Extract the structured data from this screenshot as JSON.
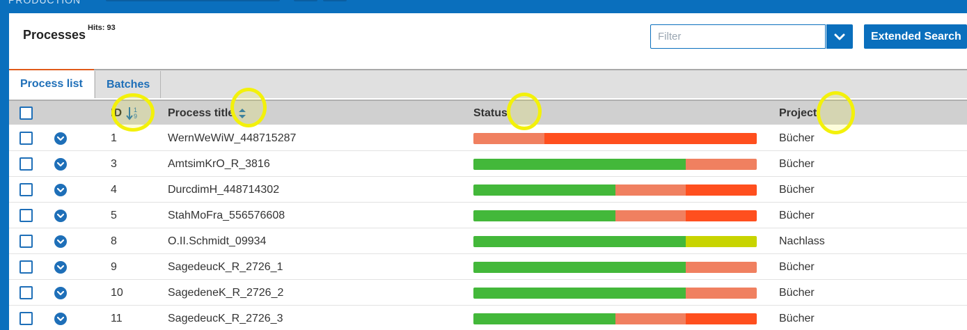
{
  "topbar": {
    "app_label": "PRODUCTION"
  },
  "header": {
    "title": "Processes",
    "hits": "Hits: 93",
    "filter_placeholder": "Filter",
    "extended_search_label": "Extended Search"
  },
  "tabs": [
    {
      "label": "Process list",
      "active": true
    },
    {
      "label": "Batches",
      "active": false
    }
  ],
  "table": {
    "columns": {
      "id": "ID",
      "title": "Process title",
      "status": "Status",
      "project": "Project"
    },
    "rows": [
      {
        "id": "1",
        "title": "WernWeWiW_448715287",
        "project": "Bücher",
        "status": [
          {
            "color": "#f08060",
            "fraction": 0.25
          },
          {
            "color": "#ff4f1e",
            "fraction": 0.75
          }
        ]
      },
      {
        "id": "3",
        "title": "AmtsimKrO_R_3816",
        "project": "Bücher",
        "status": [
          {
            "color": "#43b83a",
            "fraction": 0.75
          },
          {
            "color": "#f08060",
            "fraction": 0.25
          }
        ]
      },
      {
        "id": "4",
        "title": "DurcdimH_448714302",
        "project": "Bücher",
        "status": [
          {
            "color": "#43b83a",
            "fraction": 0.5
          },
          {
            "color": "#f08060",
            "fraction": 0.25
          },
          {
            "color": "#ff4f1e",
            "fraction": 0.25
          }
        ]
      },
      {
        "id": "5",
        "title": "StahMoFra_556576608",
        "project": "Bücher",
        "status": [
          {
            "color": "#43b83a",
            "fraction": 0.5
          },
          {
            "color": "#f08060",
            "fraction": 0.25
          },
          {
            "color": "#ff4f1e",
            "fraction": 0.25
          }
        ]
      },
      {
        "id": "8",
        "title": "O.II.Schmidt_09934",
        "project": "Nachlass",
        "status": [
          {
            "color": "#43b83a",
            "fraction": 0.75
          },
          {
            "color": "#c8d400",
            "fraction": 0.25
          }
        ]
      },
      {
        "id": "9",
        "title": "SagedeucK_R_2726_1",
        "project": "Bücher",
        "status": [
          {
            "color": "#43b83a",
            "fraction": 0.75
          },
          {
            "color": "#f08060",
            "fraction": 0.25
          }
        ]
      },
      {
        "id": "10",
        "title": "SagedeneK_R_2726_2",
        "project": "Bücher",
        "status": [
          {
            "color": "#43b83a",
            "fraction": 0.75
          },
          {
            "color": "#f08060",
            "fraction": 0.25
          }
        ]
      },
      {
        "id": "11",
        "title": "SagedeucK_R_2726_3",
        "project": "Bücher",
        "status": [
          {
            "color": "#43b83a",
            "fraction": 0.5
          },
          {
            "color": "#f08060",
            "fraction": 0.25
          },
          {
            "color": "#ff4f1e",
            "fraction": 0.25
          }
        ]
      }
    ]
  },
  "sort_icon_digits": {
    "top": "1",
    "bottom": "9"
  },
  "colors": {
    "accent": "#1e6fb8",
    "brand_bar": "#0a6fbd",
    "highlight": "#f3f10a"
  }
}
